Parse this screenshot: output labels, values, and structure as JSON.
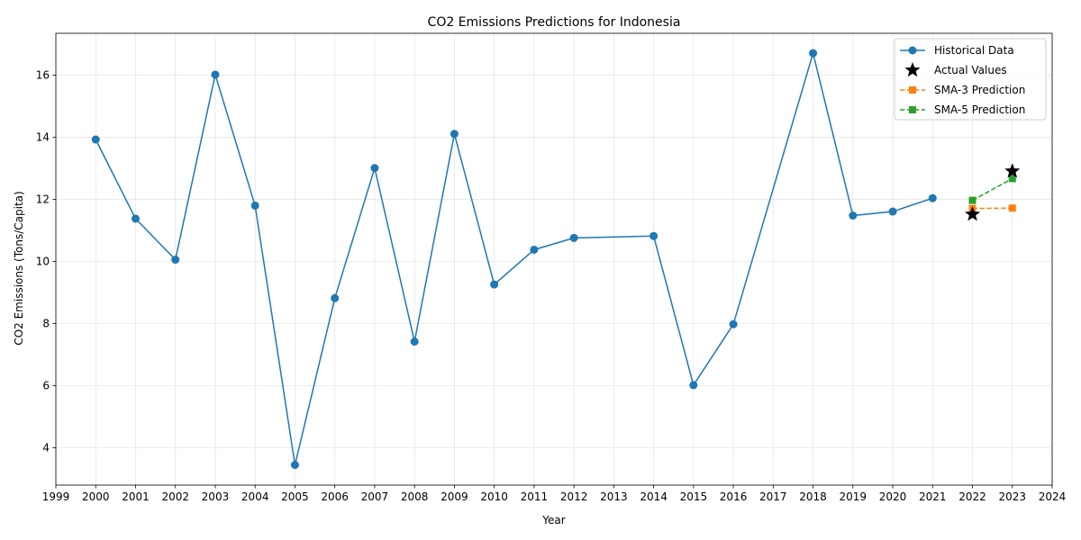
{
  "chart_data": {
    "type": "line",
    "title": "CO2 Emissions Predictions for Indonesia",
    "xlabel": "Year",
    "ylabel": "CO2 Emissions (Tons/Capita)",
    "xlim": [
      1999,
      2024
    ],
    "ylim": [
      2.8,
      17.35
    ],
    "xticks": [
      1999,
      2000,
      2001,
      2002,
      2003,
      2004,
      2005,
      2006,
      2007,
      2008,
      2009,
      2010,
      2011,
      2012,
      2013,
      2014,
      2015,
      2016,
      2017,
      2018,
      2019,
      2020,
      2021,
      2022,
      2023,
      2024
    ],
    "yticks": [
      4,
      6,
      8,
      10,
      12,
      14,
      16
    ],
    "grid": true,
    "legend_position": "top-right",
    "series": [
      {
        "name": "Historical Data",
        "style": "solid-line-circle",
        "color": "#1f77b4",
        "x": [
          2000,
          2001,
          2002,
          2003,
          2004,
          2005,
          2006,
          2007,
          2008,
          2009,
          2010,
          2011,
          2012,
          2014,
          2015,
          2016,
          2018,
          2019,
          2020,
          2021
        ],
        "y": [
          13.93,
          11.38,
          10.06,
          16.02,
          11.8,
          3.45,
          8.82,
          13.01,
          7.42,
          14.11,
          9.26,
          10.38,
          10.76,
          10.82,
          6.02,
          7.98,
          16.71,
          11.48,
          11.61,
          12.04
        ]
      },
      {
        "name": "Actual Values",
        "style": "star-marker",
        "color": "#000000",
        "x": [
          2022,
          2023
        ],
        "y": [
          11.52,
          12.91
        ]
      },
      {
        "name": "SMA-3 Prediction",
        "style": "dashed-line-square",
        "color": "#ff7f0e",
        "x": [
          2022,
          2023
        ],
        "y": [
          11.71,
          11.72
        ]
      },
      {
        "name": "SMA-5 Prediction",
        "style": "dashed-line-square",
        "color": "#2ca02c",
        "x": [
          2022,
          2023
        ],
        "y": [
          11.97,
          12.67
        ]
      }
    ]
  }
}
